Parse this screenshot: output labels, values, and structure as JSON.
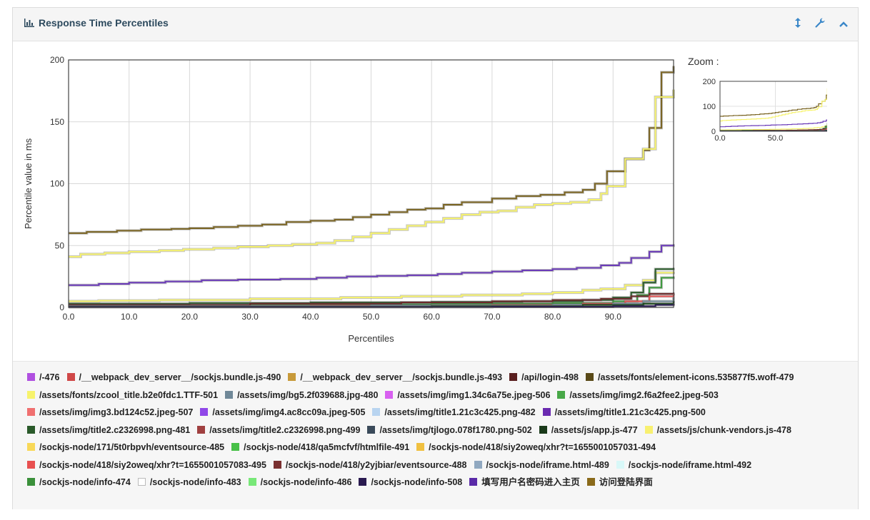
{
  "panel": {
    "title": "Response Time Percentiles",
    "tools": [
      "resize-icon",
      "wrench-icon",
      "collapse-icon"
    ]
  },
  "zoom": {
    "label": "Zoom :",
    "y_ticks": [
      "200",
      "100",
      "0"
    ],
    "x_ticks": [
      "0.0",
      "50.0"
    ]
  },
  "chart_data": {
    "type": "line",
    "xlabel": "Percentiles",
    "ylabel": "Percentile value in ms",
    "xlim": [
      0,
      100
    ],
    "ylim": [
      0,
      200
    ],
    "x_ticks": [
      0,
      10,
      20,
      30,
      40,
      50,
      60,
      70,
      80,
      90
    ],
    "y_ticks": [
      0,
      50,
      100,
      150,
      200
    ],
    "grid": true,
    "series": [
      {
        "name": "访问登陆界面",
        "color": "#7a6422",
        "points": [
          [
            0,
            60
          ],
          [
            3,
            61
          ],
          [
            8,
            62
          ],
          [
            12,
            63
          ],
          [
            17,
            63.5
          ],
          [
            20,
            64
          ],
          [
            24,
            65
          ],
          [
            28,
            66
          ],
          [
            32,
            67
          ],
          [
            36,
            69
          ],
          [
            40,
            70
          ],
          [
            44,
            71
          ],
          [
            47,
            73
          ],
          [
            50,
            75
          ],
          [
            53,
            77
          ],
          [
            56,
            79
          ],
          [
            59,
            80
          ],
          [
            62,
            83
          ],
          [
            65,
            85
          ],
          [
            70,
            88
          ],
          [
            74,
            90
          ],
          [
            78,
            91
          ],
          [
            82,
            93
          ],
          [
            85,
            95
          ],
          [
            87,
            100
          ],
          [
            89,
            110
          ],
          [
            92,
            120
          ],
          [
            95,
            127
          ],
          [
            96,
            145
          ],
          [
            98,
            190
          ],
          [
            100,
            195
          ]
        ]
      },
      {
        "name": "/assets/fonts/zcool_title.b2e0fdc1.TTF-501",
        "color": "#f7f36c",
        "points": [
          [
            0,
            41
          ],
          [
            2,
            43
          ],
          [
            6,
            44
          ],
          [
            10,
            45
          ],
          [
            15,
            46
          ],
          [
            19,
            47
          ],
          [
            24,
            48
          ],
          [
            28,
            49
          ],
          [
            33,
            50
          ],
          [
            37,
            51
          ],
          [
            41,
            52
          ],
          [
            44,
            54
          ],
          [
            47,
            57
          ],
          [
            50,
            60
          ],
          [
            53,
            63
          ],
          [
            56,
            66
          ],
          [
            59,
            69
          ],
          [
            62,
            72
          ],
          [
            65,
            75
          ],
          [
            68,
            77
          ],
          [
            71,
            78
          ],
          [
            74,
            81
          ],
          [
            77,
            83
          ],
          [
            80,
            84
          ],
          [
            83,
            85
          ],
          [
            86,
            87
          ],
          [
            88,
            92
          ],
          [
            89,
            98
          ],
          [
            92,
            120
          ],
          [
            95,
            128
          ],
          [
            97,
            170
          ],
          [
            100,
            176
          ]
        ]
      },
      {
        "name": "填写用户名密码进入主页",
        "color": "#6a3ab8",
        "points": [
          [
            0,
            18
          ],
          [
            5,
            19
          ],
          [
            10,
            20
          ],
          [
            16,
            21
          ],
          [
            22,
            22
          ],
          [
            28,
            22.5
          ],
          [
            35,
            23
          ],
          [
            41,
            24
          ],
          [
            46,
            25
          ],
          [
            51,
            25.5
          ],
          [
            56,
            26
          ],
          [
            61,
            27
          ],
          [
            65,
            28
          ],
          [
            70,
            29
          ],
          [
            75,
            30
          ],
          [
            80,
            31
          ],
          [
            84,
            32
          ],
          [
            88,
            34
          ],
          [
            91,
            36
          ],
          [
            93,
            40
          ],
          [
            96,
            45
          ],
          [
            98,
            50
          ],
          [
            100,
            51
          ]
        ]
      },
      {
        "name": "/assets/js/chunk-vendors.js-478",
        "color": "#f7f36c",
        "points": [
          [
            0,
            5
          ],
          [
            5,
            5.5
          ],
          [
            15,
            6
          ],
          [
            30,
            7
          ],
          [
            45,
            8
          ],
          [
            55,
            9
          ],
          [
            65,
            10
          ],
          [
            75,
            11
          ],
          [
            80,
            12
          ],
          [
            85,
            14
          ],
          [
            88,
            15
          ],
          [
            92,
            18
          ],
          [
            95,
            22
          ],
          [
            97,
            28
          ],
          [
            100,
            29
          ]
        ]
      },
      {
        "name": "/assets/js/app.js-477",
        "color": "#2a5c2a",
        "points": [
          [
            0,
            3
          ],
          [
            20,
            3.5
          ],
          [
            40,
            4
          ],
          [
            60,
            4.5
          ],
          [
            75,
            5
          ],
          [
            85,
            6
          ],
          [
            90,
            8
          ],
          [
            93,
            12
          ],
          [
            95,
            20
          ],
          [
            97,
            31
          ],
          [
            100,
            32
          ]
        ]
      },
      {
        "name": "/sockjs-node/info-474",
        "color": "#3e9a3e",
        "points": [
          [
            0,
            2
          ],
          [
            30,
            2.5
          ],
          [
            60,
            3
          ],
          [
            80,
            3.5
          ],
          [
            90,
            5
          ],
          [
            94,
            10
          ],
          [
            96,
            16
          ],
          [
            98,
            24
          ],
          [
            100,
            25
          ]
        ]
      },
      {
        "name": "/api/login-498",
        "color": "#6b2a2a",
        "points": [
          [
            0,
            2
          ],
          [
            30,
            3
          ],
          [
            55,
            4
          ],
          [
            70,
            5
          ],
          [
            80,
            6
          ],
          [
            88,
            7
          ],
          [
            93,
            9
          ],
          [
            96,
            11
          ],
          [
            100,
            12
          ]
        ]
      },
      {
        "name": "/sockjs-node/418/siy2oweq/xhr?t=1655001057083-495",
        "color": "#e85454",
        "points": [
          [
            0,
            1
          ],
          [
            40,
            1.5
          ],
          [
            70,
            2
          ],
          [
            85,
            3
          ],
          [
            92,
            5
          ],
          [
            96,
            9
          ],
          [
            100,
            11
          ]
        ]
      },
      {
        "name": "/assets/img/bg5.2f039688.jpg-480",
        "color": "#7890a0",
        "points": [
          [
            0,
            1
          ],
          [
            50,
            1.5
          ],
          [
            80,
            2
          ],
          [
            90,
            3
          ],
          [
            95,
            5
          ],
          [
            100,
            8
          ]
        ]
      },
      {
        "name": "/assets/img/title2.c2326998.png-481",
        "color": "#1a4a1a",
        "points": [
          [
            0,
            0.5
          ],
          [
            60,
            1
          ],
          [
            85,
            2
          ],
          [
            95,
            3
          ],
          [
            100,
            5
          ]
        ]
      },
      {
        "name": "/sockjs-node/info-508",
        "color": "#2a1a55",
        "points": [
          [
            0,
            0.3
          ],
          [
            70,
            0.6
          ],
          [
            90,
            1
          ],
          [
            97,
            2
          ],
          [
            100,
            3
          ]
        ]
      }
    ],
    "legend": [
      {
        "label": "/-476",
        "color": "#b050e0"
      },
      {
        "label": "/__webpack_dev_server__/sockjs.bundle.js-490",
        "color": "#d04848"
      },
      {
        "label": "/__webpack_dev_server__/sockjs.bundle.js-493",
        "color": "#c89a3a"
      },
      {
        "label": "/api/login-498",
        "color": "#5a1f1f"
      },
      {
        "label": "/assets/fonts/element-icons.535877f5.woff-479",
        "color": "#5a4a18"
      },
      {
        "label": "/assets/fonts/zcool_title.b2e0fdc1.TTF-501",
        "color": "#f7f36c"
      },
      {
        "label": "/assets/img/bg5.2f039688.jpg-480",
        "color": "#708898"
      },
      {
        "label": "/assets/img/img1.34c6a75e.jpeg-506",
        "color": "#d860f0"
      },
      {
        "label": "/assets/img/img2.f6a2fee2.jpeg-503",
        "color": "#48a848"
      },
      {
        "label": "/assets/img/img3.bd124c52.jpeg-507",
        "color": "#f07070"
      },
      {
        "label": "/assets/img/img4.ac8cc09a.jpeg-505",
        "color": "#9048e8"
      },
      {
        "label": "/assets/img/title1.21c3c425.png-482",
        "color": "#b8d4f0"
      },
      {
        "label": "/assets/img/title1.21c3c425.png-500",
        "color": "#6a2ab0"
      },
      {
        "label": "/assets/img/title2.c2326998.png-481",
        "color": "#2a5a2a"
      },
      {
        "label": "/assets/img/title2.c2326998.png-499",
        "color": "#a04040"
      },
      {
        "label": "/assets/img/tjlogo.078f1780.png-502",
        "color": "#3a4a5a"
      },
      {
        "label": "/assets/js/app.js-477",
        "color": "#1a3a1a"
      },
      {
        "label": "/assets/js/chunk-vendors.js-478",
        "color": "#f8f070"
      },
      {
        "label": "/sockjs-node/171/5t0rbpvh/eventsource-485",
        "color": "#f8d858"
      },
      {
        "label": "/sockjs-node/418/qa5mcfvf/htmlfile-491",
        "color": "#48c048"
      },
      {
        "label": "/sockjs-node/418/siy2oweq/xhr?t=1655001057031-494",
        "color": "#f0c040"
      },
      {
        "label": "/sockjs-node/418/siy2oweq/xhr?t=1655001057083-495",
        "color": "#e85050"
      },
      {
        "label": "/sockjs-node/418/y2yjbiar/eventsource-488",
        "color": "#7a3030"
      },
      {
        "label": "/sockjs-node/iframe.html-489",
        "color": "#90a8c0"
      },
      {
        "label": "/sockjs-node/iframe.html-492",
        "color": "#d8f8f8"
      },
      {
        "label": "/sockjs-node/info-474",
        "color": "#3a903a"
      },
      {
        "label": "/sockjs-node/info-483",
        "color": "#ffffff"
      },
      {
        "label": "/sockjs-node/info-486",
        "color": "#78e878"
      },
      {
        "label": "/sockjs-node/info-508",
        "color": "#2a1a50"
      },
      {
        "label": "填写用户名密码进入主页",
        "color": "#5a2aa8"
      },
      {
        "label": "访问登陆界面",
        "color": "#8a6a1a"
      }
    ]
  }
}
